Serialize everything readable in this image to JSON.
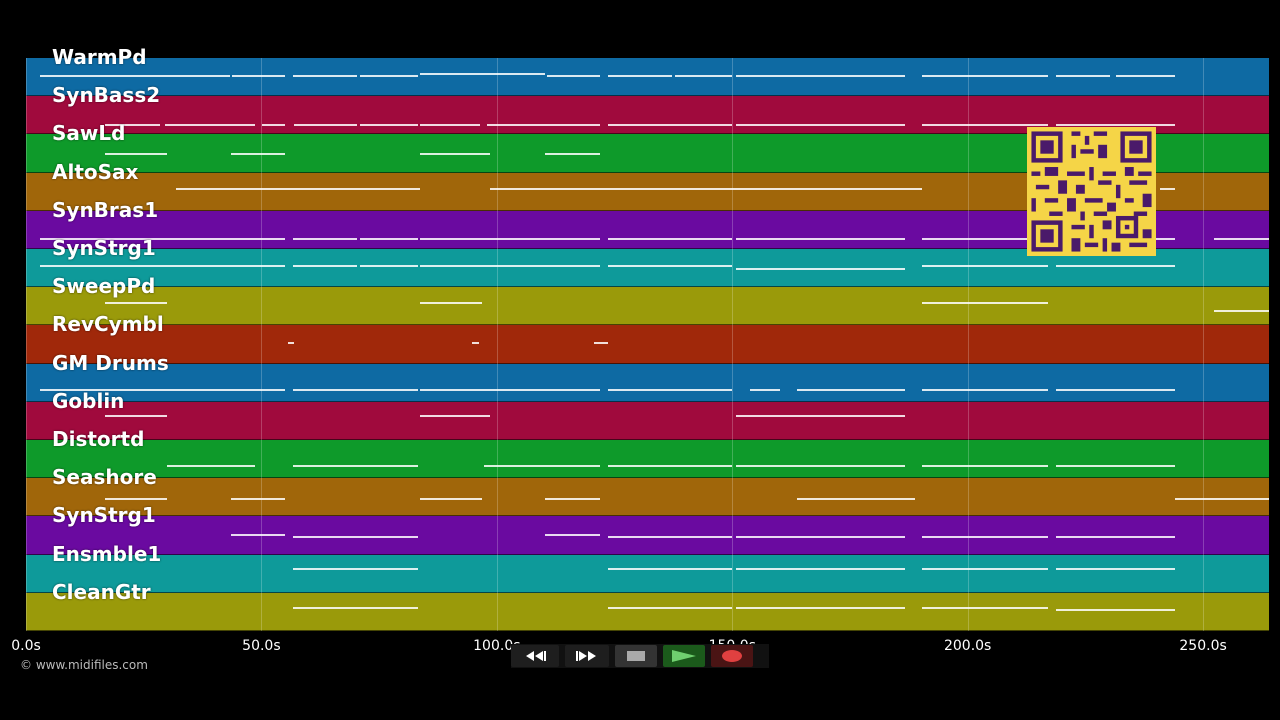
{
  "tracks": [
    {
      "name": "WarmPd",
      "color": "#0e6aa3"
    },
    {
      "name": "SynBass2",
      "color": "#a00a3d"
    },
    {
      "name": "SawLd",
      "color": "#0e9a2a"
    },
    {
      "name": "AltoSax",
      "color": "#a0660a"
    },
    {
      "name": "SynBras1",
      "color": "#6a0aa0"
    },
    {
      "name": "SynStrg1",
      "color": "#0e9a9a"
    },
    {
      "name": "SweepPd",
      "color": "#9a9a0a"
    },
    {
      "name": "RevCymbl",
      "color": "#a0280a"
    },
    {
      "name": "GM Drums",
      "color": "#0e6aa3"
    },
    {
      "name": "Goblin",
      "color": "#a00a3d"
    },
    {
      "name": "Distortd",
      "color": "#0e9a2a"
    },
    {
      "name": "Seashore",
      "color": "#a0660a"
    },
    {
      "name": "SynStrg1",
      "color": "#6a0aa0"
    },
    {
      "name": "Ensmble1",
      "color": "#0e9a9a"
    },
    {
      "name": "CleanGtr",
      "color": "#9a9a0a"
    }
  ],
  "timeline": {
    "ticks": [
      "0.0s",
      "50.0s",
      "100.0s",
      "150.0s",
      "200.0s",
      "250.0s"
    ],
    "tick_seconds": [
      0,
      50,
      100,
      150,
      200,
      250
    ],
    "max_seconds": 264
  },
  "copyright": "© www.midifiles.com",
  "transport": {
    "rewind_icon": "rewind-icon",
    "forward_icon": "fast-forward-icon",
    "stop_icon": "stop-icon",
    "play_icon": "play-icon",
    "record_icon": "record-icon"
  },
  "qr_code": "qr-code-icon"
}
